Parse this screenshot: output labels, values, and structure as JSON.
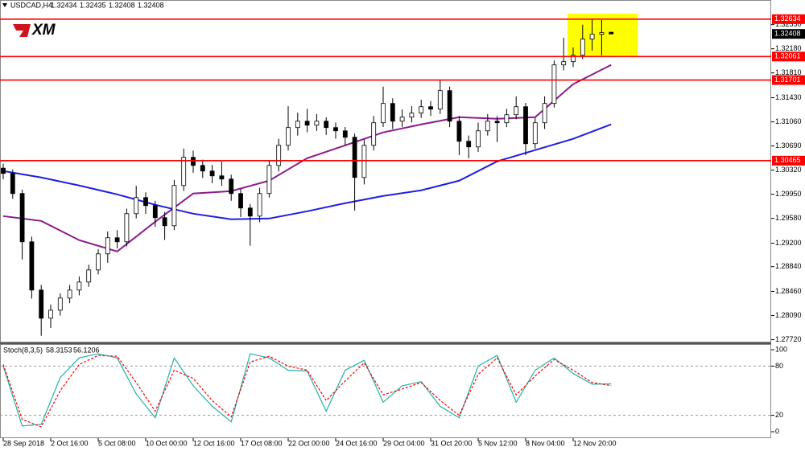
{
  "logo": "XM",
  "chart_data": [
    {
      "type": "candlestick",
      "symbol": "USDCAD,H4",
      "categories": [
        "28 Sep 2018",
        null,
        null,
        null,
        null,
        "2 Oct 16:00",
        null,
        null,
        null,
        null,
        "5 Oct 08:00",
        null,
        null,
        null,
        null,
        "10 Oct 00:00",
        null,
        null,
        null,
        null,
        "12 Oct 16:00",
        null,
        null,
        null,
        null,
        "17 Oct 08:00",
        null,
        null,
        null,
        null,
        "22 Oct 00:00",
        null,
        null,
        null,
        null,
        "24 Oct 16:00",
        null,
        null,
        null,
        null,
        "29 Oct 04:00",
        null,
        null,
        null,
        null,
        "31 Oct 20:00",
        null,
        null,
        null,
        null,
        "5 Nov 12:00",
        null,
        null,
        null,
        null,
        "8 Nov 04:00",
        null,
        null,
        null,
        null,
        "12 Nov 20:00",
        null,
        null,
        null,
        null
      ],
      "open": [
        1.3035,
        1.30269,
        1.29961,
        1.29221,
        1.28481,
        1.2805,
        1.28173,
        1.28358,
        1.28481,
        1.28604,
        1.28789,
        1.29036,
        1.29283,
        1.29221,
        1.29652,
        1.29899,
        1.29776,
        1.29591,
        1.29467,
        1.30084,
        1.30516,
        1.30392,
        1.30306,
        1.30232,
        1.30183,
        1.29961,
        1.29739,
        1.29615,
        1.29961,
        1.30392,
        1.307,
        1.30972,
        1.3107,
        1.31009,
        1.3107,
        1.30972,
        1.30922,
        1.30824,
        1.30207,
        1.307,
        1.31046,
        1.31342,
        1.3107,
        1.31132,
        1.31194,
        1.31292,
        1.31255,
        1.31539,
        1.3107,
        1.30762,
        1.30676,
        1.30922,
        1.3107,
        1.31046,
        1.31169,
        1.31292,
        1.30725,
        1.31046,
        1.31342,
        1.31933,
        1.31983,
        1.32081,
        1.32328,
        1.32402,
        1.32434
      ],
      "high": [
        1.3042,
        1.3033,
        1.3002,
        1.293,
        1.2856,
        1.2826,
        1.2843,
        1.2856,
        1.2869,
        1.2887,
        1.2911,
        1.2938,
        1.294,
        1.2973,
        1.3008,
        1.2998,
        1.2985,
        1.2968,
        1.3017,
        1.3065,
        1.3062,
        1.3048,
        1.304,
        1.3045,
        1.3025,
        1.3003,
        1.298,
        1.3005,
        1.3047,
        1.308,
        1.313,
        1.312,
        1.3126,
        1.3118,
        1.3113,
        1.3105,
        1.3098,
        1.3088,
        1.3079,
        1.3115,
        1.316,
        1.3142,
        1.3125,
        1.313,
        1.314,
        1.3138,
        1.317,
        1.316,
        1.3115,
        1.3085,
        1.3105,
        1.3118,
        1.3115,
        1.3126,
        1.3145,
        1.3135,
        1.3112,
        1.3145,
        1.32,
        1.3235,
        1.322,
        1.3255,
        1.32634,
        1.3262,
        1.32435
      ],
      "low": [
        1.3018,
        1.2988,
        1.2895,
        1.2835,
        1.2778,
        1.279,
        1.2809,
        1.2828,
        1.284,
        1.2853,
        1.2872,
        1.289,
        1.2912,
        1.2915,
        1.2958,
        1.2965,
        1.2945,
        1.2925,
        1.294,
        1.3,
        1.3028,
        1.302,
        1.3012,
        1.3008,
        1.2985,
        1.296,
        1.2916,
        1.2952,
        1.299,
        1.303,
        1.3062,
        1.3085,
        1.309,
        1.3092,
        1.3086,
        1.308,
        1.307,
        1.297,
        1.301,
        1.3062,
        1.3098,
        1.3095,
        1.3098,
        1.3105,
        1.3112,
        1.3115,
        1.3118,
        1.3098,
        1.3055,
        1.305,
        1.306,
        1.3085,
        1.3075,
        1.3098,
        1.311,
        1.3055,
        1.3065,
        1.3095,
        1.3128,
        1.3185,
        1.319,
        1.3202,
        1.3215,
        1.3208,
        1.32408
      ],
      "close": [
        1.30269,
        1.29961,
        1.29221,
        1.28481,
        1.2805,
        1.28173,
        1.28358,
        1.28481,
        1.28604,
        1.28789,
        1.29036,
        1.29283,
        1.29221,
        1.29652,
        1.29899,
        1.29776,
        1.29591,
        1.29467,
        1.30084,
        1.30516,
        1.30392,
        1.30306,
        1.30232,
        1.30183,
        1.29961,
        1.29739,
        1.29615,
        1.29961,
        1.30392,
        1.307,
        1.30972,
        1.3107,
        1.31009,
        1.3107,
        1.30972,
        1.30922,
        1.30824,
        1.30207,
        1.307,
        1.31046,
        1.31342,
        1.3107,
        1.31132,
        1.31194,
        1.31292,
        1.31255,
        1.31539,
        1.3107,
        1.30762,
        1.30676,
        1.30922,
        1.3107,
        1.31046,
        1.31169,
        1.31292,
        1.30725,
        1.31046,
        1.31342,
        1.31933,
        1.31983,
        1.32081,
        1.32328,
        1.32402,
        1.32427,
        1.32408
      ],
      "overlays": [
        {
          "color": "#8b1a8b",
          "x": [
            0,
            4,
            8,
            12,
            16,
            20,
            24,
            28,
            32,
            36,
            40,
            44,
            48,
            52,
            56,
            60,
            64
          ],
          "values": [
            1.29615,
            1.29541,
            1.29246,
            1.29073,
            1.29529,
            1.29961,
            1.29998,
            1.30158,
            1.30503,
            1.307,
            1.30898,
            1.31021,
            1.31132,
            1.31107,
            1.31132,
            1.31638,
            1.31933
          ]
        },
        {
          "color": "#1f1fe0",
          "x": [
            0,
            4,
            8,
            12,
            16,
            20,
            24,
            28,
            32,
            36,
            40,
            44,
            48,
            52,
            56,
            60,
            64
          ],
          "values": [
            1.30306,
            1.30207,
            1.30084,
            1.29948,
            1.29788,
            1.29652,
            1.29566,
            1.29578,
            1.29689,
            1.29813,
            1.29924,
            1.3001,
            1.30158,
            1.30454,
            1.30627,
            1.30799,
            1.31021
          ]
        }
      ],
      "levels": [
        1.32634,
        1.32061,
        1.31701,
        1.30465
      ],
      "level_color": "#ff0000",
      "highlight_color": "#ffff00",
      "ylim": [
        1.2769,
        1.3278
      ],
      "yticks": [
        {
          "value": 1.3255,
          "label": "1.32550"
        },
        {
          "value": 1.3218,
          "label": "1.32180"
        },
        {
          "value": 1.3181,
          "label": "1.31810"
        },
        {
          "value": 1.3143,
          "label": "1.31430"
        },
        {
          "value": 1.3106,
          "label": "1.31060"
        },
        {
          "value": 1.3069,
          "label": "1.30690"
        },
        {
          "value": 1.3032,
          "label": "1.30320"
        },
        {
          "value": 1.2995,
          "label": "1.29950"
        },
        {
          "value": 1.2958,
          "label": "1.29580"
        },
        {
          "value": 1.292,
          "label": "1.29200"
        },
        {
          "value": 1.2884,
          "label": "1.28840"
        },
        {
          "value": 1.2846,
          "label": "1.28460"
        },
        {
          "value": 1.2809,
          "label": "1.28090"
        },
        {
          "value": 1.2772,
          "label": "1.27720"
        }
      ],
      "grid": false
    },
    {
      "type": "line",
      "title": "Stoch(8,3,5)",
      "x": [
        0,
        2,
        4,
        6,
        8,
        10,
        12,
        14,
        16,
        18,
        20,
        22,
        24,
        26,
        28,
        30,
        32,
        34,
        36,
        38,
        40,
        42,
        44,
        46,
        48,
        50,
        52,
        54,
        56,
        58,
        60,
        62,
        64
      ],
      "series": [
        {
          "color": "#20b2aa",
          "values": [
            80,
            7,
            9,
            66,
            90,
            95,
            90,
            46,
            17,
            90,
            56,
            31,
            12,
            95,
            90,
            75,
            74,
            25,
            75,
            87,
            36,
            56,
            61,
            31,
            17,
            80,
            93,
            36,
            75,
            90,
            71,
            58,
            58.3153
          ]
        },
        {
          "color": "#ff0000",
          "dashed": true,
          "values": [
            82,
            15,
            6,
            50,
            82,
            93,
            92,
            60,
            25,
            75,
            65,
            38,
            18,
            85,
            92,
            80,
            75,
            38,
            62,
            84,
            45,
            52,
            60,
            38,
            20,
            70,
            90,
            45,
            68,
            88,
            75,
            60,
            56.1206
          ]
        }
      ],
      "ylim": [
        0,
        100
      ],
      "yticks": [
        100,
        80,
        20,
        0
      ]
    }
  ]
}
